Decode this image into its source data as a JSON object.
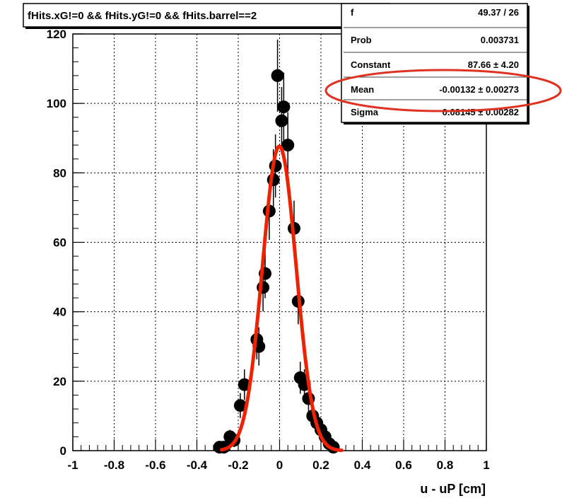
{
  "chart_data": {
    "type": "scatter",
    "title": "fHits.xG!=0 && fHits.yG!=0 && fHits.barrel==2",
    "xlabel": "u - uP [cm]",
    "ylabel": "",
    "xlim": [
      -1,
      1
    ],
    "ylim": [
      0,
      120
    ],
    "x_ticks": [
      "-1",
      "-0.8",
      "-0.6",
      "-0.4",
      "-0.2",
      "0",
      "0.2",
      "0.4",
      "0.6",
      "0.8",
      "1"
    ],
    "y_ticks": [
      "0",
      "20",
      "40",
      "60",
      "80",
      "100",
      "120"
    ],
    "grid": true,
    "series": [
      {
        "values": [
          {
            "x": -0.29,
            "y": 1,
            "err": 1
          },
          {
            "x": -0.27,
            "y": 1,
            "err": 1
          },
          {
            "x": -0.24,
            "y": 4,
            "err": 2
          },
          {
            "x": -0.22,
            "y": 3,
            "err": 2
          },
          {
            "x": -0.19,
            "y": 13,
            "err": 3.6
          },
          {
            "x": -0.17,
            "y": 19,
            "err": 4.4
          },
          {
            "x": -0.11,
            "y": 32,
            "err": 5.7
          },
          {
            "x": -0.1,
            "y": 30,
            "err": 5.5
          },
          {
            "x": -0.08,
            "y": 47,
            "err": 6.9
          },
          {
            "x": -0.07,
            "y": 51,
            "err": 7.1
          },
          {
            "x": -0.05,
            "y": 69,
            "err": 8.3
          },
          {
            "x": -0.03,
            "y": 78,
            "err": 8.8
          },
          {
            "x": -0.02,
            "y": 82,
            "err": 9.1
          },
          {
            "x": -0.01,
            "y": 108,
            "err": 10.4
          },
          {
            "x": 0.01,
            "y": 95,
            "err": 9.7
          },
          {
            "x": 0.02,
            "y": 99,
            "err": 9.9
          },
          {
            "x": 0.04,
            "y": 88,
            "err": 9.4
          },
          {
            "x": 0.07,
            "y": 64,
            "err": 8.0
          },
          {
            "x": 0.09,
            "y": 43,
            "err": 6.6
          },
          {
            "x": 0.1,
            "y": 21,
            "err": 4.6
          },
          {
            "x": 0.12,
            "y": 19,
            "err": 4.4
          },
          {
            "x": 0.14,
            "y": 15,
            "err": 3.9
          },
          {
            "x": 0.16,
            "y": 10,
            "err": 3.2
          },
          {
            "x": 0.18,
            "y": 8,
            "err": 2.8
          },
          {
            "x": 0.2,
            "y": 6,
            "err": 2.4
          },
          {
            "x": 0.22,
            "y": 4,
            "err": 2
          },
          {
            "x": 0.24,
            "y": 2,
            "err": 1.4
          },
          {
            "x": 0.26,
            "y": 1,
            "err": 1
          }
        ],
        "color": "#000000"
      },
      {
        "type": "gaussian_fit",
        "constant": 87.66,
        "mean": -0.00132,
        "sigma": 0.08145,
        "range": [
          -0.28,
          0.3
        ],
        "color": "#ee2200"
      }
    ],
    "stats_box": [
      {
        "label": "f",
        "value": "49.37 / 26"
      },
      {
        "label": "Prob",
        "value": "0.003731"
      },
      {
        "label": "Constant",
        "value": "87.66 ± 4.20"
      },
      {
        "label": "Mean",
        "value": "-0.00132 ± 0.00273"
      },
      {
        "label": "Sigma",
        "value": "0.08145 ± 0.00282"
      }
    ],
    "highlight": {
      "target": "Mean",
      "color": "#dd3322"
    }
  }
}
